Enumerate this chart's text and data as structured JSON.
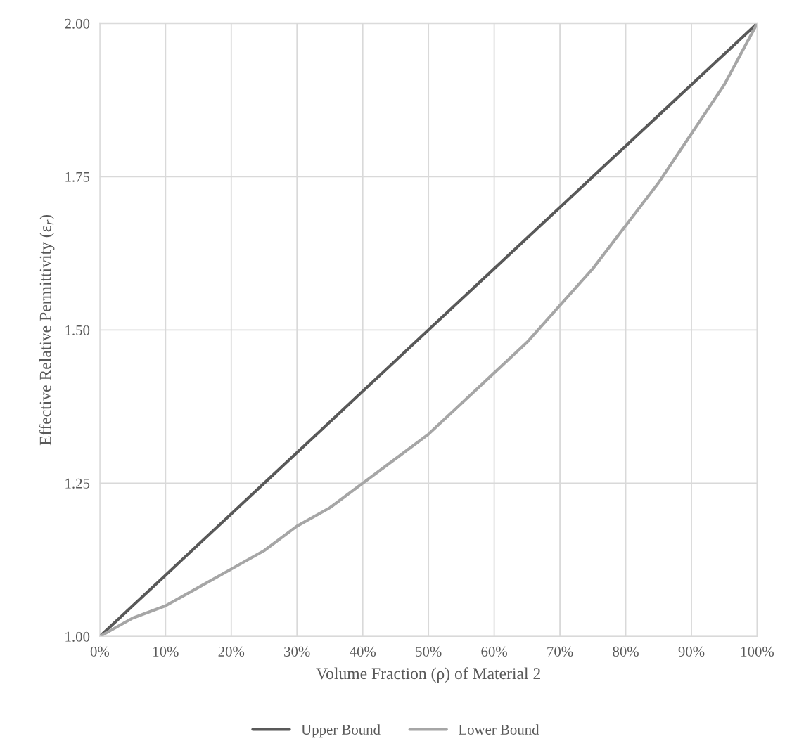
{
  "chart_data": {
    "type": "line",
    "xlabel": "Volume Fraction (ρ) of Material 2",
    "ylabel": "Effective Relative Permittivity (ε$_{r}$)",
    "x": [
      0,
      5,
      10,
      15,
      20,
      25,
      30,
      35,
      40,
      45,
      50,
      55,
      60,
      65,
      70,
      75,
      80,
      85,
      90,
      95,
      100
    ],
    "series": [
      {
        "name": "Upper Bound",
        "color": "#595959",
        "values": [
          1.0,
          1.05,
          1.1,
          1.15,
          1.2,
          1.25,
          1.3,
          1.35,
          1.4,
          1.45,
          1.5,
          1.55,
          1.6,
          1.65,
          1.7,
          1.75,
          1.8,
          1.85,
          1.9,
          1.95,
          2.0
        ]
      },
      {
        "name": "Lower Bound",
        "color": "#a6a6a6",
        "values": [
          1.0,
          1.03,
          1.05,
          1.08,
          1.11,
          1.14,
          1.18,
          1.21,
          1.25,
          1.29,
          1.33,
          1.38,
          1.43,
          1.48,
          1.54,
          1.6,
          1.67,
          1.74,
          1.82,
          1.9,
          2.0
        ]
      }
    ],
    "xlim": [
      0,
      100
    ],
    "xticks": [
      {
        "value": 0,
        "label": "0%"
      },
      {
        "value": 10,
        "label": "10%"
      },
      {
        "value": 20,
        "label": "20%"
      },
      {
        "value": 30,
        "label": "30%"
      },
      {
        "value": 40,
        "label": "40%"
      },
      {
        "value": 50,
        "label": "50%"
      },
      {
        "value": 60,
        "label": "60%"
      },
      {
        "value": 70,
        "label": "70%"
      },
      {
        "value": 80,
        "label": "80%"
      },
      {
        "value": 90,
        "label": "90%"
      },
      {
        "value": 100,
        "label": "100%"
      }
    ],
    "ylim": [
      1.0,
      2.0
    ],
    "yticks": [
      {
        "value": 1.0,
        "label": "1.00"
      },
      {
        "value": 1.25,
        "label": "1.25"
      },
      {
        "value": 1.5,
        "label": "1.50"
      },
      {
        "value": 1.75,
        "label": "1.75"
      },
      {
        "value": 2.0,
        "label": "2.00"
      }
    ],
    "grid": true,
    "legend": "bottom",
    "marker": "none",
    "line_style": "solid"
  }
}
